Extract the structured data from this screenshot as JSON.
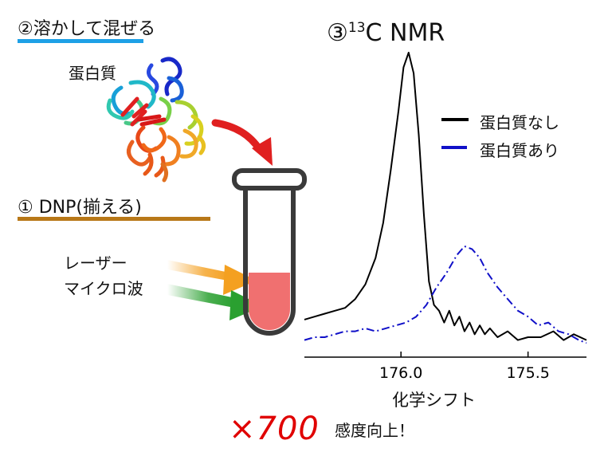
{
  "step2": {
    "label": "②溶かして混ぜる"
  },
  "protein_label": "蛋白質",
  "step1": {
    "label": "① DNP(揃える)"
  },
  "irradiation": {
    "line1": "レーザー",
    "line2": "マイクロ波"
  },
  "nmr": {
    "title_prefix": "③",
    "superscript": "13",
    "title_suffix": "C NMR"
  },
  "legend": [
    {
      "label": "蛋白質なし",
      "color": "#000000"
    },
    {
      "label": "蛋白質あり",
      "color": "#1010c8"
    }
  ],
  "enhancement": {
    "factor": "×700",
    "text": "感度向上！"
  },
  "colors": {
    "step2_underline": "#1ea0e6",
    "step1_underline": "#b87818",
    "arrow_red": "#e02020",
    "sample": "#f07070",
    "laser_orange": "#f4a020",
    "microwave_green": "#2aa030"
  },
  "chart_data": {
    "type": "line",
    "title": "③13C NMR",
    "xlabel": "化学シフト",
    "ylabel": "",
    "x_reversed": true,
    "xlim": [
      176.38,
      175.27
    ],
    "x_tick_labels": [
      "176.0",
      "175.5"
    ],
    "x_tick_values": [
      176.0,
      175.5
    ],
    "y_scale": "relative intensity (no axis printed)",
    "series": [
      {
        "name": "蛋白質なし",
        "style": "solid",
        "color": "#000000",
        "points": [
          [
            176.38,
            0.09
          ],
          [
            176.34,
            0.1
          ],
          [
            176.3,
            0.11
          ],
          [
            176.26,
            0.12
          ],
          [
            176.22,
            0.13
          ],
          [
            176.18,
            0.16
          ],
          [
            176.14,
            0.21
          ],
          [
            176.1,
            0.3
          ],
          [
            176.07,
            0.42
          ],
          [
            176.04,
            0.6
          ],
          [
            176.01,
            0.8
          ],
          [
            175.99,
            0.95
          ],
          [
            175.97,
            1.0
          ],
          [
            175.95,
            0.93
          ],
          [
            175.93,
            0.72
          ],
          [
            175.91,
            0.45
          ],
          [
            175.89,
            0.22
          ],
          [
            175.87,
            0.14
          ],
          [
            175.85,
            0.12
          ],
          [
            175.83,
            0.08
          ],
          [
            175.81,
            0.12
          ],
          [
            175.79,
            0.07
          ],
          [
            175.77,
            0.1
          ],
          [
            175.75,
            0.05
          ],
          [
            175.73,
            0.08
          ],
          [
            175.71,
            0.04
          ],
          [
            175.69,
            0.07
          ],
          [
            175.67,
            0.04
          ],
          [
            175.65,
            0.06
          ],
          [
            175.62,
            0.03
          ],
          [
            175.58,
            0.05
          ],
          [
            175.54,
            0.02
          ],
          [
            175.5,
            0.03
          ],
          [
            175.45,
            0.03
          ],
          [
            175.4,
            0.05
          ],
          [
            175.36,
            0.02
          ],
          [
            175.32,
            0.04
          ],
          [
            175.27,
            0.02
          ]
        ]
      },
      {
        "name": "蛋白質あり",
        "style": "dash-dot",
        "color": "#1010c8",
        "points": [
          [
            176.38,
            0.02
          ],
          [
            176.34,
            0.03
          ],
          [
            176.3,
            0.03
          ],
          [
            176.26,
            0.04
          ],
          [
            176.22,
            0.05
          ],
          [
            176.18,
            0.05
          ],
          [
            176.14,
            0.06
          ],
          [
            176.1,
            0.05
          ],
          [
            176.06,
            0.06
          ],
          [
            176.02,
            0.07
          ],
          [
            175.98,
            0.08
          ],
          [
            175.94,
            0.1
          ],
          [
            175.9,
            0.14
          ],
          [
            175.86,
            0.2
          ],
          [
            175.82,
            0.25
          ],
          [
            175.78,
            0.31
          ],
          [
            175.75,
            0.34
          ],
          [
            175.72,
            0.33
          ],
          [
            175.69,
            0.3
          ],
          [
            175.66,
            0.25
          ],
          [
            175.62,
            0.2
          ],
          [
            175.58,
            0.16
          ],
          [
            175.54,
            0.12
          ],
          [
            175.5,
            0.1
          ],
          [
            175.46,
            0.07
          ],
          [
            175.42,
            0.08
          ],
          [
            175.38,
            0.05
          ],
          [
            175.34,
            0.04
          ],
          [
            175.3,
            0.02
          ],
          [
            175.27,
            0.01
          ]
        ]
      }
    ]
  }
}
